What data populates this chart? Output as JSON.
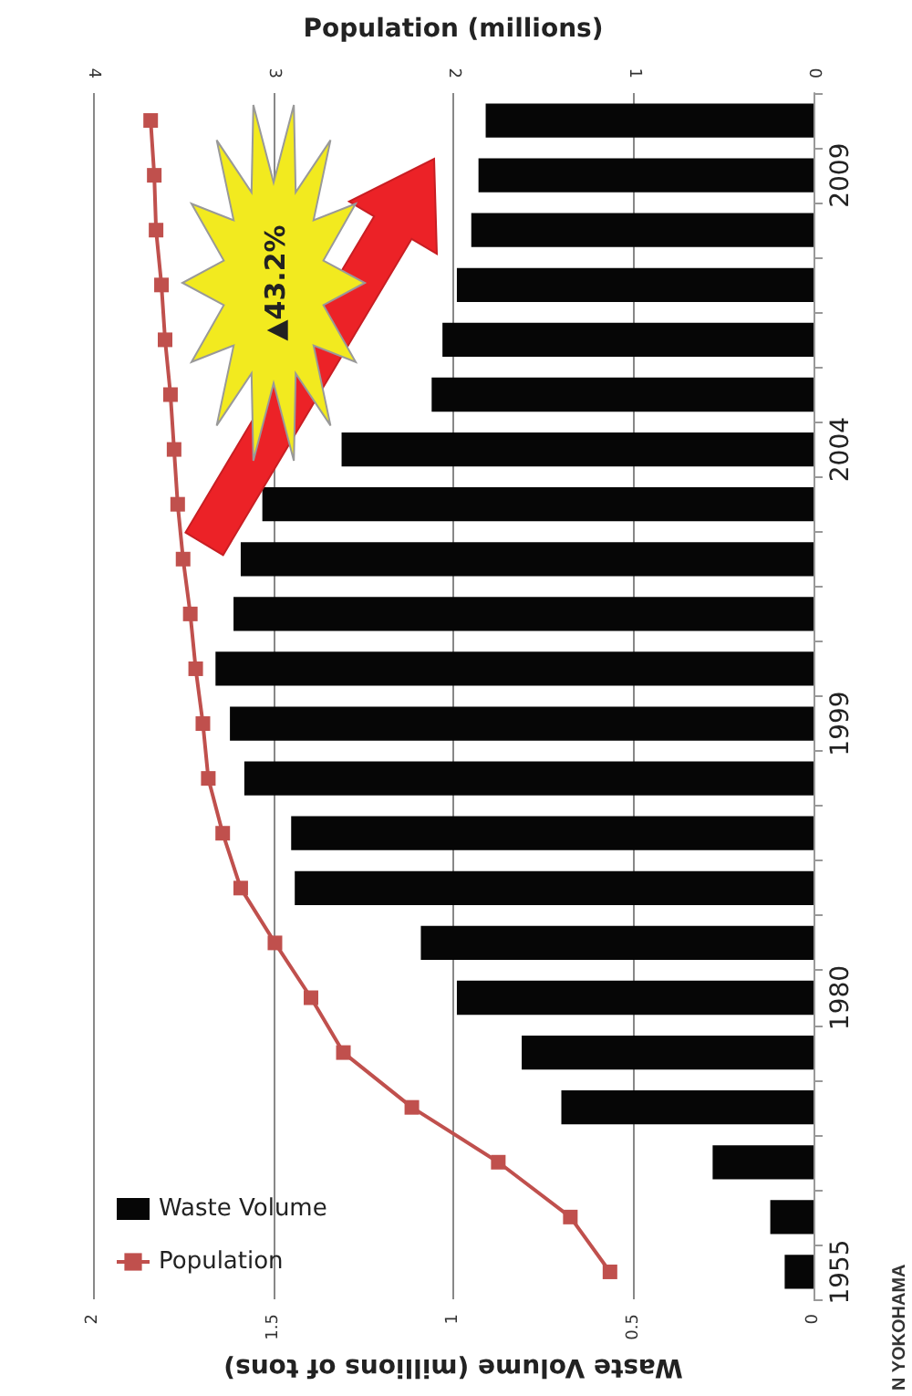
{
  "chart_data": {
    "type": "bar",
    "orientation": "horizontal",
    "categories": [
      null,
      "2009",
      null,
      null,
      null,
      null,
      "2004",
      null,
      null,
      null,
      null,
      "1999",
      null,
      null,
      null,
      null,
      "1980",
      null,
      null,
      null,
      null,
      "1955"
    ],
    "series": [
      {
        "name": "Waste Volume",
        "color": "#060606",
        "values": [
          0.91,
          0.93,
          0.95,
          0.99,
          1.03,
          1.06,
          1.31,
          1.53,
          1.59,
          1.61,
          1.66,
          1.62,
          1.58,
          1.45,
          1.44,
          1.09,
          0.99,
          0.81,
          0.7,
          0.28,
          0.12,
          0.08
        ]
      },
      {
        "name": "Population",
        "type": "line",
        "axis": "x2",
        "color": "#c0504d",
        "marker": "square",
        "values": [
          3.68,
          3.66,
          3.65,
          3.62,
          3.6,
          3.57,
          3.55,
          3.53,
          3.5,
          3.46,
          3.43,
          3.39,
          3.36,
          3.28,
          3.18,
          2.99,
          2.79,
          2.61,
          2.23,
          1.75,
          1.35,
          1.13
        ]
      }
    ],
    "xlabel": "Waste Volume (millions of tons)",
    "x2label": "Population (millions)",
    "xlim": [
      2,
      0
    ],
    "xticks": [
      0,
      0.5,
      1,
      1.5,
      2
    ],
    "x2lim": [
      4,
      0
    ],
    "x2ticks": [
      0,
      1,
      2,
      3,
      4
    ],
    "grid": "x",
    "legend": "bottom left",
    "annotations": [
      "▲43.2%",
      "N YOKOHAMA"
    ]
  }
}
